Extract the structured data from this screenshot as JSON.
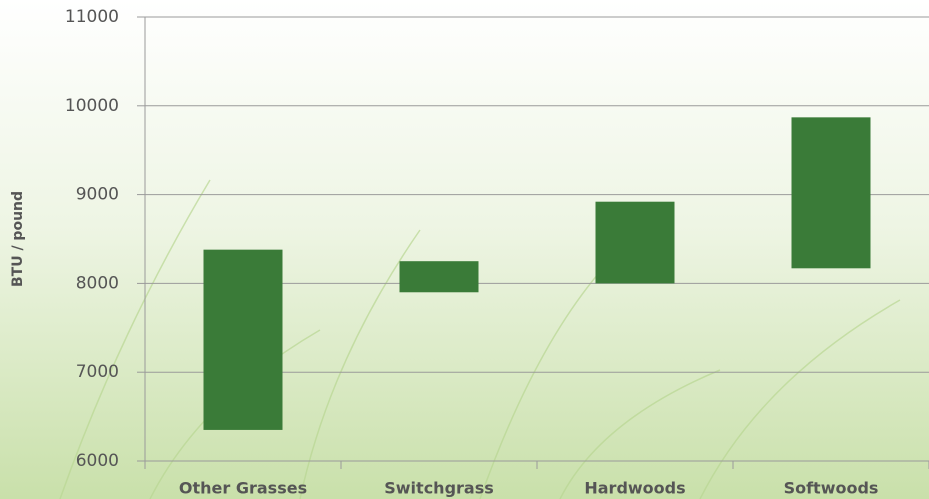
{
  "chart_data": {
    "type": "range",
    "y_label": "BTU / pound",
    "categories": [
      "Other Grasses",
      "Switchgrass",
      "Hardwoods",
      "Softwoods"
    ],
    "low": [
      6350,
      7900,
      8000,
      8170
    ],
    "high": [
      8380,
      8250,
      8920,
      9870
    ],
    "color": "#3a7b38",
    "ylim": [
      6000,
      11000
    ],
    "yticks": [
      6000,
      7000,
      8000,
      9000,
      10000,
      11000
    ],
    "grid": true
  }
}
